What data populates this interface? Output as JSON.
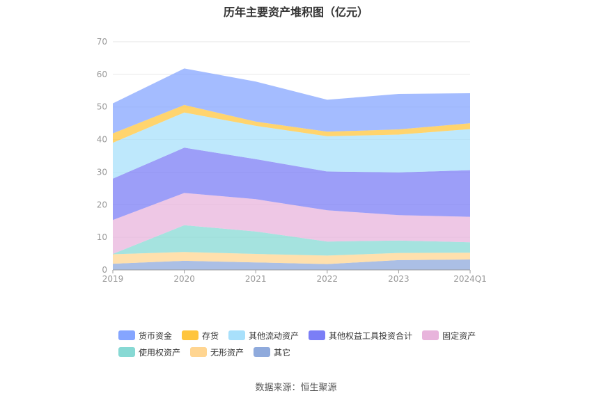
{
  "title": "历年主要资产堆积图（亿元）",
  "source": "数据来源：恒生聚源",
  "chart_data": {
    "type": "area",
    "stacked": true,
    "categories": [
      "2019",
      "2020",
      "2021",
      "2022",
      "2023",
      "2024Q1"
    ],
    "ylim": [
      0,
      70
    ],
    "yticks": [
      "0",
      "10",
      "20",
      "30",
      "40",
      "50",
      "60",
      "70"
    ],
    "grid": true,
    "legend_position": "bottom",
    "series": [
      {
        "name": "其它",
        "color": "#8faadc",
        "values": [
          1.9,
          2.8,
          2.3,
          1.8,
          3.0,
          3.2
        ]
      },
      {
        "name": "无形资产",
        "color": "#ffd591",
        "values": [
          2.9,
          2.7,
          2.6,
          2.6,
          2.2,
          2.1
        ]
      },
      {
        "name": "使用权资产",
        "color": "#87d9d4",
        "values": [
          0.1,
          8.2,
          6.9,
          4.3,
          3.8,
          3.2
        ]
      },
      {
        "name": "固定资产",
        "color": "#e8b4dc",
        "values": [
          10.4,
          9.9,
          9.9,
          9.6,
          7.8,
          7.8
        ]
      },
      {
        "name": "其他权益工具投资合计",
        "color": "#7b7ef6",
        "values": [
          12.7,
          13.9,
          12.3,
          11.9,
          13.1,
          14.3
        ]
      },
      {
        "name": "其他流动资产",
        "color": "#a8e0fb",
        "values": [
          11.0,
          10.8,
          10.2,
          10.8,
          11.6,
          12.6
        ]
      },
      {
        "name": "存货",
        "color": "#ffc53d",
        "values": [
          2.9,
          2.3,
          1.3,
          1.4,
          1.6,
          1.8
        ]
      },
      {
        "name": "货币资金",
        "color": "#85a5ff",
        "values": [
          9.2,
          11.2,
          12.3,
          9.8,
          10.9,
          9.2
        ]
      }
    ],
    "legend_order": [
      "货币资金",
      "存货",
      "其他流动资产",
      "其他权益工具投资合计",
      "固定资产",
      "使用权资产",
      "无形资产",
      "其它"
    ]
  }
}
